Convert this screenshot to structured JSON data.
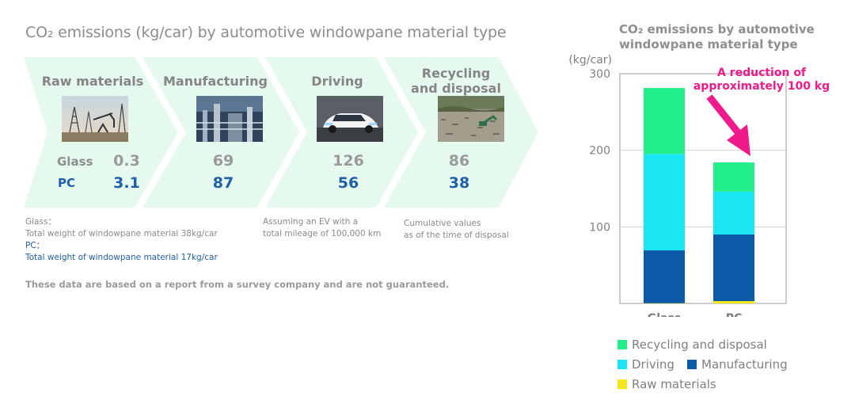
{
  "left_panel": {
    "title": "CO₂ emissions (kg/car) by automotive windowpane material type",
    "stages": [
      {
        "label": "Raw materials",
        "photo": "oil-field-photo",
        "glass": "0.3",
        "pc": "3.1"
      },
      {
        "label": "Manufacturing",
        "photo": "factory-photo",
        "glass": "69",
        "pc": "87"
      },
      {
        "label": "Driving",
        "photo": "electric-car-photo",
        "glass": "126",
        "pc": "56"
      },
      {
        "label": "Recycling and disposal",
        "photo": "landfill-photo",
        "glass": "86",
        "pc": "38"
      }
    ],
    "row_labels": {
      "glass": "Glass",
      "pc": "PC"
    },
    "notes": {
      "glass_title": "Glass：",
      "glass_text": "Total weight of windowpane material 38kg/car",
      "pc_title": "PC：",
      "pc_text": "Total weight of windowpane material 17kg/car",
      "driving_line1": "Assuming an EV with a",
      "driving_line2": "total mileage of 100,000 km",
      "recycle_line1": "Cumulative values",
      "recycle_line2": "as of the time of disposal"
    },
    "disclaimer": "These data are based on a report from a survey company and are not guaranteed.",
    "colors": {
      "arrow_fill": "#e6f9ef",
      "pc_blue": "#1f5fa8"
    }
  },
  "chart_data": {
    "type": "bar",
    "stacked": true,
    "title": "CO₂ emissions by automotive windowpane material type",
    "ylabel": "(kg/car)",
    "categories": [
      "Glass",
      "PC"
    ],
    "ylim": [
      0,
      300
    ],
    "yticks": [
      100,
      200,
      300
    ],
    "grid": true,
    "series": [
      {
        "name": "Raw materials",
        "values": [
          0.3,
          3.1
        ],
        "color": "#f5e51b"
      },
      {
        "name": "Manufacturing",
        "values": [
          69,
          87
        ],
        "color": "#0b5aa8"
      },
      {
        "name": "Driving",
        "values": [
          126,
          56
        ],
        "color": "#19e6f2"
      },
      {
        "name": "Recycling and disposal",
        "values": [
          86,
          38
        ],
        "color": "#22ee8a"
      }
    ],
    "annotation": {
      "line1": "A reduction of",
      "line2": "approximately 100 kg",
      "color": "#ef1a8c"
    },
    "legend_position": "bottom"
  }
}
